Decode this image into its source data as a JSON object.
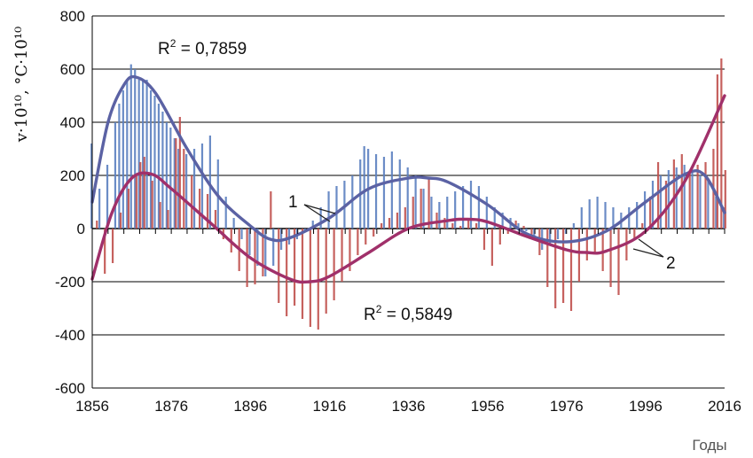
{
  "chart_data": {
    "type": "bar",
    "xlabel": "Годы",
    "ylabel": "v·10¹⁰, °C·10¹⁰",
    "xlim": [
      1856,
      2016
    ],
    "ylim": [
      -600,
      800
    ],
    "x_ticks": [
      "1856",
      "1876",
      "1896",
      "1916",
      "1936",
      "1956",
      "1976",
      "1996",
      "2016"
    ],
    "y_ticks": [
      "-600",
      "-400",
      "-200",
      "0",
      "200",
      "400",
      "600",
      "800"
    ],
    "grid": "horizontal",
    "series": [
      {
        "name": "1",
        "color": "#5b7fc0",
        "trend_color": "#5b62a4",
        "r2_label": "R",
        "r2_value": " = 0,7859",
        "trend_points": [
          [
            1856,
            100
          ],
          [
            1860,
            400
          ],
          [
            1864,
            540
          ],
          [
            1867,
            570
          ],
          [
            1872,
            510
          ],
          [
            1880,
            300
          ],
          [
            1888,
            120
          ],
          [
            1896,
            10
          ],
          [
            1901,
            -40
          ],
          [
            1906,
            -35
          ],
          [
            1916,
            40
          ],
          [
            1926,
            150
          ],
          [
            1936,
            190
          ],
          [
            1941,
            190
          ],
          [
            1946,
            175
          ],
          [
            1956,
            90
          ],
          [
            1966,
            -20
          ],
          [
            1976,
            -50
          ],
          [
            1986,
            -10
          ],
          [
            1996,
            100
          ],
          [
            2006,
            205
          ],
          [
            2011,
            200
          ],
          [
            2016,
            60
          ]
        ],
        "bars": [
          [
            1856,
            320
          ],
          [
            1858,
            150
          ],
          [
            1860,
            240
          ],
          [
            1862,
            400
          ],
          [
            1863,
            470
          ],
          [
            1864,
            520
          ],
          [
            1865,
            560
          ],
          [
            1866,
            618
          ],
          [
            1867,
            600
          ],
          [
            1868,
            560
          ],
          [
            1869,
            560
          ],
          [
            1870,
            560
          ],
          [
            1871,
            520
          ],
          [
            1872,
            500
          ],
          [
            1873,
            470
          ],
          [
            1874,
            440
          ],
          [
            1875,
            400
          ],
          [
            1876,
            380
          ],
          [
            1877,
            340
          ],
          [
            1878,
            300
          ],
          [
            1880,
            280
          ],
          [
            1882,
            300
          ],
          [
            1884,
            320
          ],
          [
            1886,
            350
          ],
          [
            1888,
            260
          ],
          [
            1890,
            120
          ],
          [
            1892,
            40
          ],
          [
            1894,
            -40
          ],
          [
            1896,
            -100
          ],
          [
            1898,
            -140
          ],
          [
            1900,
            -180
          ],
          [
            1902,
            -140
          ],
          [
            1904,
            -80
          ],
          [
            1906,
            -60
          ],
          [
            1908,
            -40
          ],
          [
            1910,
            -10
          ],
          [
            1912,
            30
          ],
          [
            1914,
            80
          ],
          [
            1916,
            140
          ],
          [
            1918,
            160
          ],
          [
            1920,
            180
          ],
          [
            1922,
            200
          ],
          [
            1924,
            260
          ],
          [
            1925,
            310
          ],
          [
            1926,
            300
          ],
          [
            1928,
            280
          ],
          [
            1930,
            270
          ],
          [
            1932,
            290
          ],
          [
            1934,
            260
          ],
          [
            1936,
            230
          ],
          [
            1938,
            200
          ],
          [
            1940,
            150
          ],
          [
            1942,
            120
          ],
          [
            1944,
            100
          ],
          [
            1946,
            120
          ],
          [
            1948,
            140
          ],
          [
            1950,
            160
          ],
          [
            1952,
            180
          ],
          [
            1954,
            160
          ],
          [
            1956,
            120
          ],
          [
            1958,
            80
          ],
          [
            1960,
            60
          ],
          [
            1962,
            40
          ],
          [
            1964,
            20
          ],
          [
            1966,
            -10
          ],
          [
            1968,
            -40
          ],
          [
            1970,
            -80
          ],
          [
            1972,
            -60
          ],
          [
            1974,
            -40
          ],
          [
            1976,
            -20
          ],
          [
            1978,
            20
          ],
          [
            1980,
            80
          ],
          [
            1982,
            110
          ],
          [
            1984,
            120
          ],
          [
            1986,
            100
          ],
          [
            1988,
            80
          ],
          [
            1990,
            60
          ],
          [
            1992,
            80
          ],
          [
            1994,
            100
          ],
          [
            1996,
            140
          ],
          [
            1998,
            180
          ],
          [
            2000,
            200
          ],
          [
            2002,
            220
          ],
          [
            2004,
            230
          ],
          [
            2006,
            240
          ],
          [
            2008,
            210
          ],
          [
            2010,
            200
          ],
          [
            2012,
            180
          ],
          [
            2014,
            120
          ],
          [
            2016,
            80
          ]
        ]
      },
      {
        "name": "2",
        "color": "#c0504d",
        "trend_color": "#a0306a",
        "r2_label": "R",
        "r2_value": " = 0,5849",
        "trend_points": [
          [
            1856,
            -190
          ],
          [
            1861,
            60
          ],
          [
            1866,
            190
          ],
          [
            1871,
            205
          ],
          [
            1876,
            150
          ],
          [
            1886,
            20
          ],
          [
            1896,
            -110
          ],
          [
            1906,
            -190
          ],
          [
            1911,
            -200
          ],
          [
            1916,
            -180
          ],
          [
            1926,
            -90
          ],
          [
            1936,
            0
          ],
          [
            1946,
            30
          ],
          [
            1951,
            35
          ],
          [
            1956,
            25
          ],
          [
            1966,
            -30
          ],
          [
            1976,
            -80
          ],
          [
            1981,
            -90
          ],
          [
            1986,
            -85
          ],
          [
            1996,
            -10
          ],
          [
            2006,
            180
          ],
          [
            2016,
            500
          ]
        ],
        "bars": [
          [
            1857,
            30
          ],
          [
            1859,
            -170
          ],
          [
            1861,
            -130
          ],
          [
            1863,
            60
          ],
          [
            1865,
            150
          ],
          [
            1867,
            200
          ],
          [
            1868,
            250
          ],
          [
            1869,
            270
          ],
          [
            1871,
            180
          ],
          [
            1873,
            100
          ],
          [
            1875,
            70
          ],
          [
            1877,
            340
          ],
          [
            1878,
            420
          ],
          [
            1879,
            300
          ],
          [
            1881,
            200
          ],
          [
            1883,
            150
          ],
          [
            1885,
            130
          ],
          [
            1887,
            70
          ],
          [
            1889,
            -40
          ],
          [
            1891,
            -90
          ],
          [
            1893,
            -160
          ],
          [
            1895,
            -220
          ],
          [
            1897,
            -210
          ],
          [
            1899,
            -180
          ],
          [
            1901,
            140
          ],
          [
            1903,
            -280
          ],
          [
            1905,
            -330
          ],
          [
            1907,
            -290
          ],
          [
            1909,
            -340
          ],
          [
            1911,
            -370
          ],
          [
            1913,
            -380
          ],
          [
            1915,
            -320
          ],
          [
            1917,
            -270
          ],
          [
            1919,
            -200
          ],
          [
            1921,
            -160
          ],
          [
            1923,
            -100
          ],
          [
            1925,
            -60
          ],
          [
            1927,
            -30
          ],
          [
            1929,
            20
          ],
          [
            1931,
            40
          ],
          [
            1933,
            60
          ],
          [
            1935,
            80
          ],
          [
            1937,
            120
          ],
          [
            1939,
            150
          ],
          [
            1941,
            190
          ],
          [
            1943,
            60
          ],
          [
            1945,
            40
          ],
          [
            1947,
            20
          ],
          [
            1949,
            10
          ],
          [
            1951,
            30
          ],
          [
            1953,
            20
          ],
          [
            1955,
            -80
          ],
          [
            1957,
            -140
          ],
          [
            1959,
            -60
          ],
          [
            1961,
            -20
          ],
          [
            1963,
            30
          ],
          [
            1965,
            10
          ],
          [
            1967,
            -40
          ],
          [
            1969,
            -100
          ],
          [
            1971,
            -220
          ],
          [
            1973,
            -300
          ],
          [
            1975,
            -280
          ],
          [
            1977,
            -310
          ],
          [
            1979,
            -200
          ],
          [
            1981,
            -120
          ],
          [
            1983,
            -90
          ],
          [
            1985,
            -160
          ],
          [
            1987,
            -220
          ],
          [
            1989,
            -250
          ],
          [
            1991,
            -120
          ],
          [
            1993,
            -40
          ],
          [
            1995,
            20
          ],
          [
            1997,
            120
          ],
          [
            1999,
            250
          ],
          [
            2001,
            180
          ],
          [
            2003,
            260
          ],
          [
            2005,
            280
          ],
          [
            2007,
            220
          ],
          [
            2009,
            240
          ],
          [
            2011,
            250
          ],
          [
            2013,
            300
          ],
          [
            2014,
            580
          ],
          [
            2015,
            640
          ],
          [
            2016,
            220
          ]
        ]
      }
    ],
    "annotations": [
      "1",
      "2"
    ]
  }
}
